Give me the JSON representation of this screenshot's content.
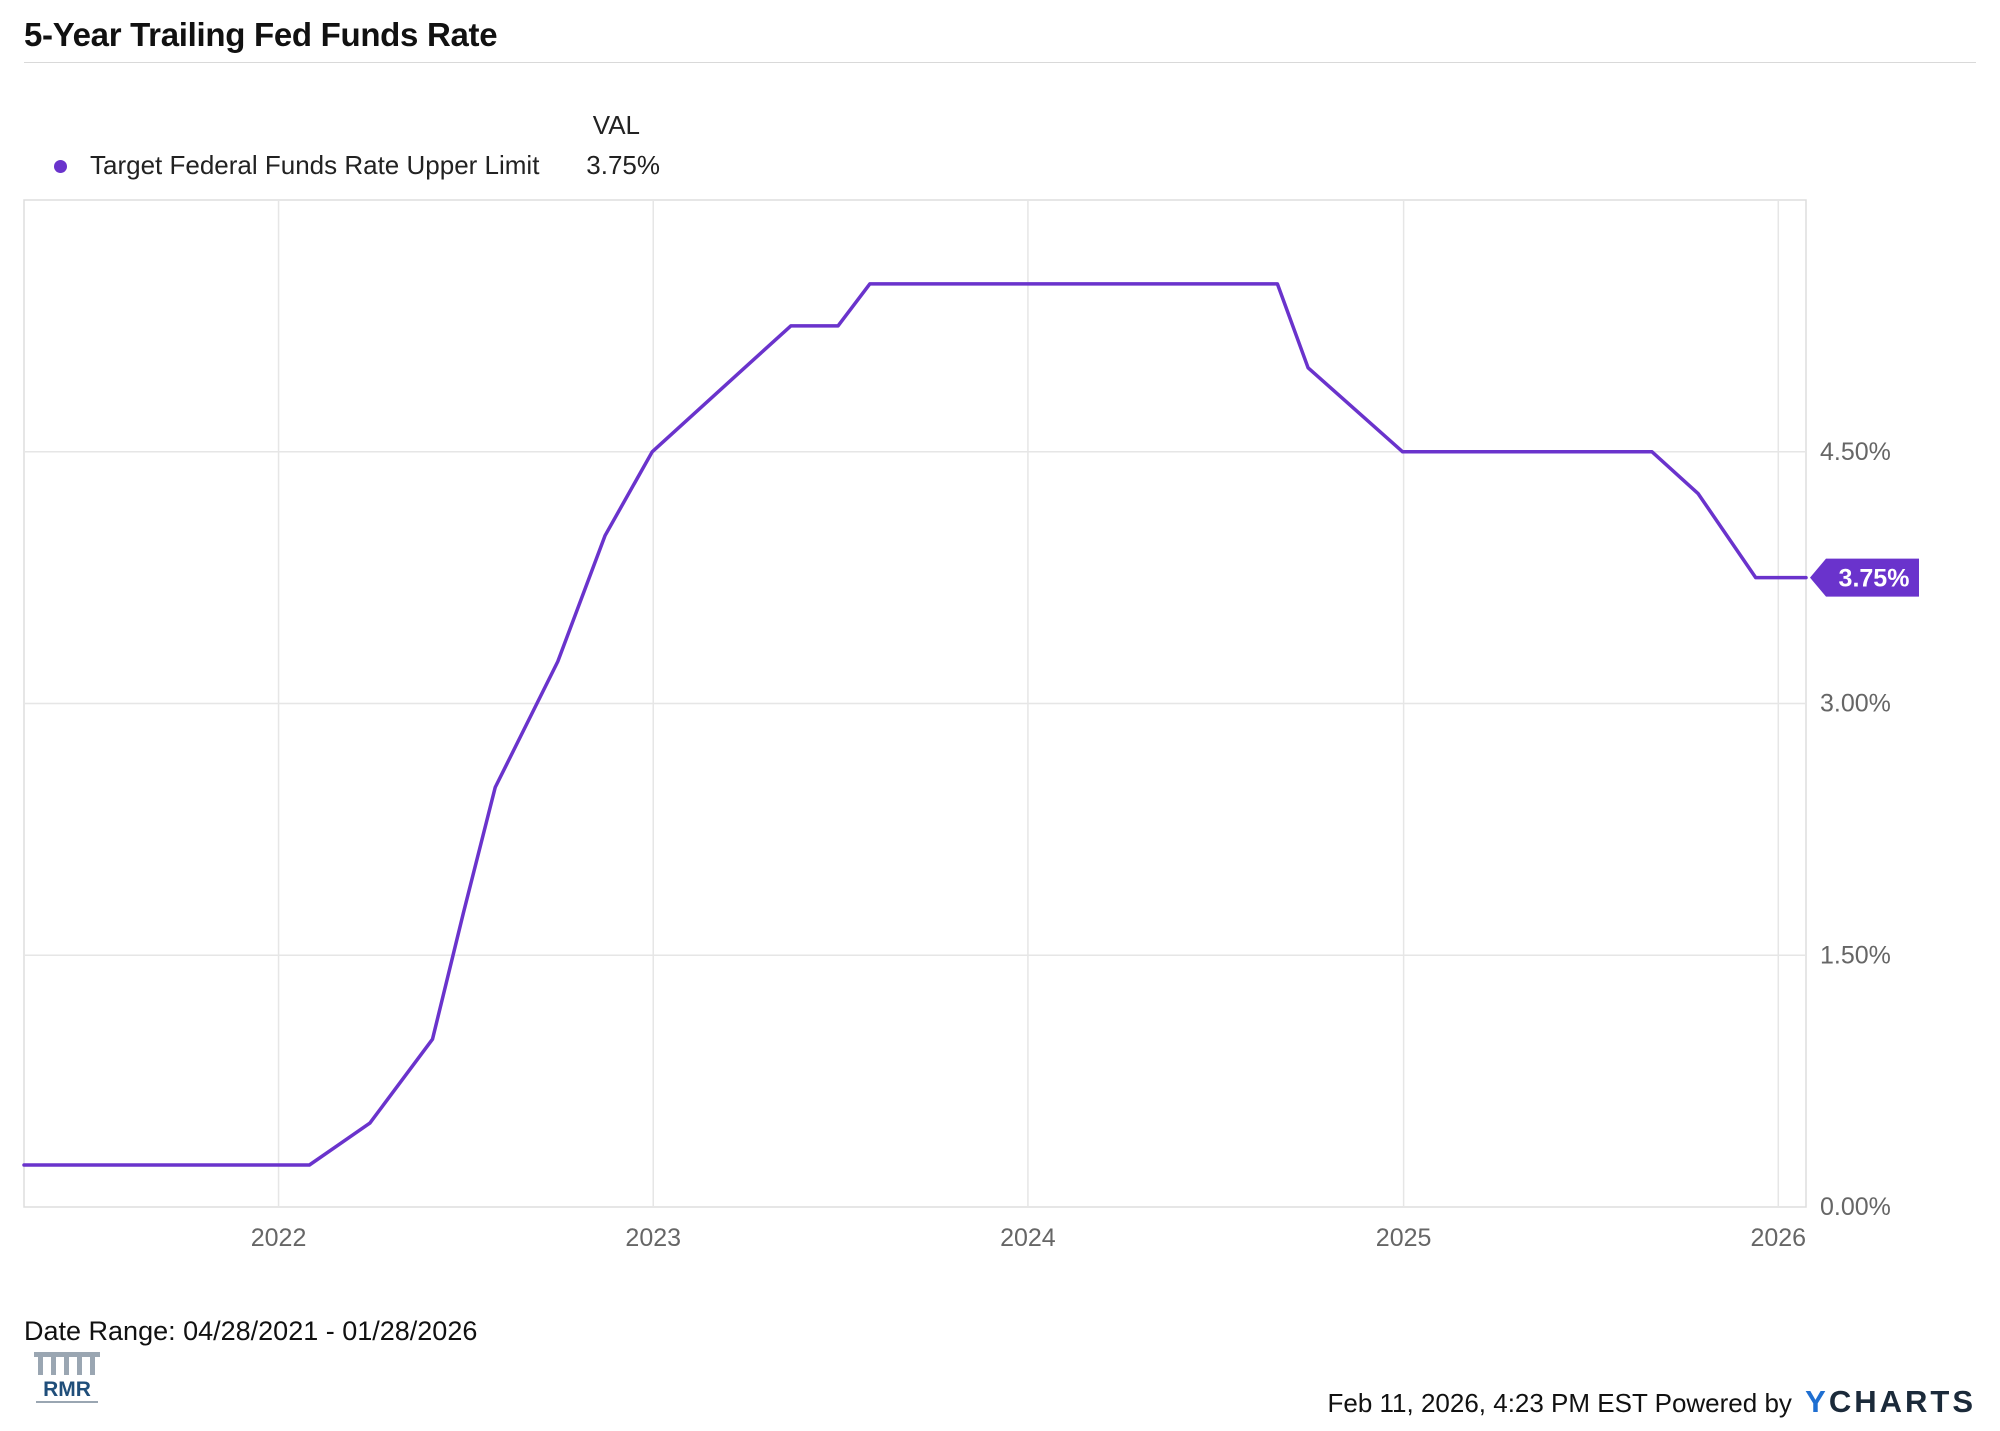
{
  "title": "5-Year Trailing Fed Funds Rate",
  "legend": {
    "column_header": "VAL",
    "series_label": "Target Federal Funds Rate Upper Limit",
    "series_value": "3.75%"
  },
  "colors": {
    "series": "#6a33cc",
    "grid": "#e6e6e6",
    "axis_text": "#666666"
  },
  "chart_data": {
    "type": "line",
    "title": "5-Year Trailing Fed Funds Rate",
    "xlabel": "",
    "ylabel": "",
    "x_range": [
      "2021-04-28",
      "2026-01-28"
    ],
    "ylim": [
      0,
      6
    ],
    "y_ticks": [
      {
        "value": 0,
        "label": "0.00%"
      },
      {
        "value": 1.5,
        "label": "1.50%"
      },
      {
        "value": 3.0,
        "label": "3.00%"
      },
      {
        "value": 4.5,
        "label": "4.50%"
      }
    ],
    "x_ticks": [
      {
        "date": "2022-01-01",
        "label": "2022"
      },
      {
        "date": "2023-01-01",
        "label": "2023"
      },
      {
        "date": "2024-01-01",
        "label": "2024"
      },
      {
        "date": "2025-01-01",
        "label": "2025"
      },
      {
        "date": "2026-01-01",
        "label": "2026"
      }
    ],
    "grid": true,
    "y_axis_side": "right",
    "end_label": "3.75%",
    "series": [
      {
        "name": "Target Federal Funds Rate Upper Limit",
        "points": [
          {
            "date": "2021-04-28",
            "value": 0.25
          },
          {
            "date": "2022-01-31",
            "value": 0.25
          },
          {
            "date": "2022-03-31",
            "value": 0.5
          },
          {
            "date": "2022-05-31",
            "value": 1.0
          },
          {
            "date": "2022-06-30",
            "value": 1.75
          },
          {
            "date": "2022-07-31",
            "value": 2.5
          },
          {
            "date": "2022-09-30",
            "value": 3.25
          },
          {
            "date": "2022-11-15",
            "value": 4.0
          },
          {
            "date": "2022-12-31",
            "value": 4.5
          },
          {
            "date": "2023-03-31",
            "value": 5.0
          },
          {
            "date": "2023-05-15",
            "value": 5.25
          },
          {
            "date": "2023-06-30",
            "value": 5.25
          },
          {
            "date": "2023-07-31",
            "value": 5.5
          },
          {
            "date": "2024-08-31",
            "value": 5.5
          },
          {
            "date": "2024-09-30",
            "value": 5.0
          },
          {
            "date": "2024-11-15",
            "value": 4.75
          },
          {
            "date": "2024-12-31",
            "value": 4.5
          },
          {
            "date": "2025-08-31",
            "value": 4.5
          },
          {
            "date": "2025-10-15",
            "value": 4.25
          },
          {
            "date": "2025-12-10",
            "value": 3.75
          },
          {
            "date": "2026-01-28",
            "value": 3.75
          }
        ]
      }
    ]
  },
  "footer": {
    "date_range": "Date Range: 04/28/2021 - 01/28/2026",
    "timestamp": "Feb 11, 2026, 4:23 PM EST Powered by",
    "brand_y": "Y",
    "brand_rest": "CHARTS",
    "logo_text": "RMR"
  }
}
